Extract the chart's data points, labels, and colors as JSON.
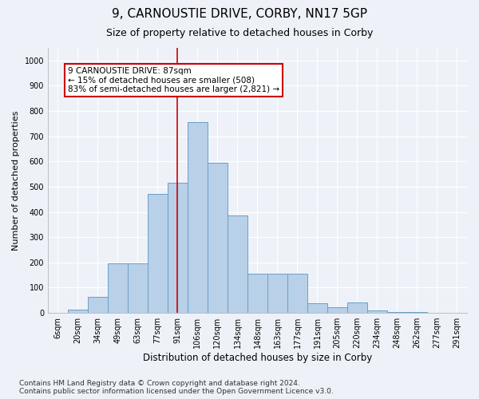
{
  "title_line1": "9, CARNOUSTIE DRIVE, CORBY, NN17 5GP",
  "title_line2": "Size of property relative to detached houses in Corby",
  "xlabel": "Distribution of detached houses by size in Corby",
  "ylabel": "Number of detached properties",
  "categories": [
    "6sqm",
    "20sqm",
    "34sqm",
    "49sqm",
    "63sqm",
    "77sqm",
    "91sqm",
    "106sqm",
    "120sqm",
    "134sqm",
    "148sqm",
    "163sqm",
    "177sqm",
    "191sqm",
    "205sqm",
    "220sqm",
    "234sqm",
    "248sqm",
    "262sqm",
    "277sqm",
    "291sqm"
  ],
  "values": [
    0,
    12,
    63,
    195,
    195,
    470,
    515,
    755,
    595,
    385,
    155,
    155,
    155,
    38,
    22,
    40,
    10,
    5,
    2,
    1,
    0
  ],
  "bar_color": "#b8d0e8",
  "bar_edge_color": "#6aa0c8",
  "vline_x_index": 6,
  "vline_color": "#cc0000",
  "annotation_text": "9 CARNOUSTIE DRIVE: 87sqm\n← 15% of detached houses are smaller (508)\n83% of semi-detached houses are larger (2,821) →",
  "annotation_box_color": "white",
  "annotation_box_edge_color": "#cc0000",
  "ylim": [
    0,
    1050
  ],
  "yticks": [
    0,
    100,
    200,
    300,
    400,
    500,
    600,
    700,
    800,
    900,
    1000
  ],
  "footnote": "Contains HM Land Registry data © Crown copyright and database right 2024.\nContains public sector information licensed under the Open Government Licence v3.0.",
  "background_color": "#eef2f8",
  "grid_color": "white",
  "title1_fontsize": 11,
  "title2_fontsize": 9,
  "xlabel_fontsize": 8.5,
  "ylabel_fontsize": 8,
  "tick_fontsize": 7,
  "annotation_fontsize": 7.5,
  "footnote_fontsize": 6.5
}
